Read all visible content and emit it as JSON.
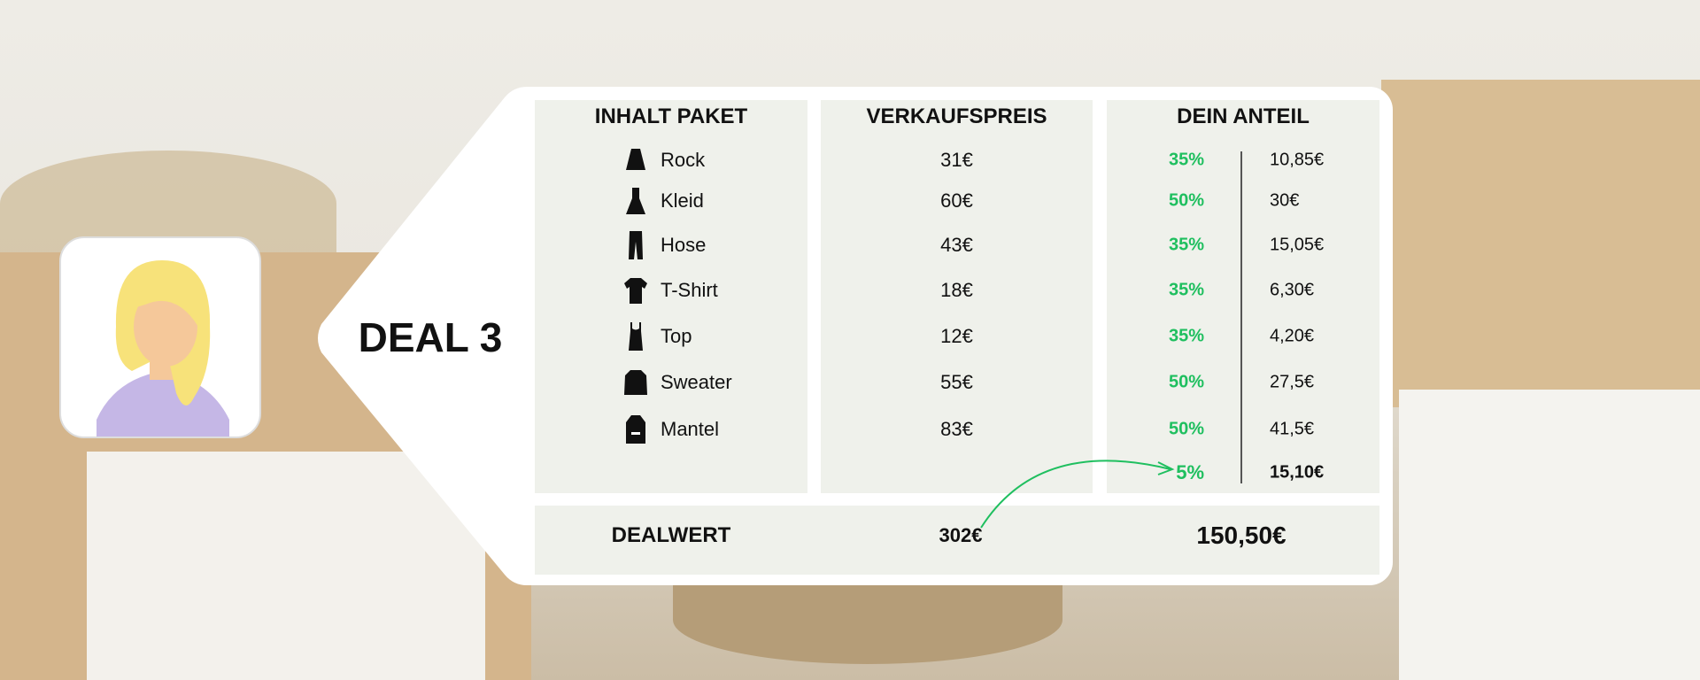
{
  "deal_title": "DEAL 3",
  "headers": {
    "contents": "INHALT PAKET",
    "price": "VERKAUFSPREIS",
    "share": "DEIN ANTEIL"
  },
  "items": [
    {
      "name": "Rock",
      "icon": "skirt-icon",
      "price": "31€",
      "percent": "35%",
      "share": "10,85€"
    },
    {
      "name": "Kleid",
      "icon": "dress-icon",
      "price": "60€",
      "percent": "50%",
      "share": "30€"
    },
    {
      "name": "Hose",
      "icon": "trousers-icon",
      "price": "43€",
      "percent": "35%",
      "share": "15,05€"
    },
    {
      "name": "T-Shirt",
      "icon": "tshirt-icon",
      "price": "18€",
      "percent": "35%",
      "share": "6,30€"
    },
    {
      "name": "Top",
      "icon": "tank-top-icon",
      "price": "12€",
      "percent": "35%",
      "share": "4,20€"
    },
    {
      "name": "Sweater",
      "icon": "sweater-icon",
      "price": "55€",
      "percent": "50%",
      "share": "27,5€"
    },
    {
      "name": "Mantel",
      "icon": "coat-icon",
      "price": "83€",
      "percent": "50%",
      "share": "41,5€"
    }
  ],
  "bonus": {
    "percent": "5%",
    "share": "15,10€"
  },
  "footer": {
    "label": "DEALWERT",
    "total_price": "302€",
    "total_share": "150,50€"
  },
  "colors": {
    "accent": "#1fbf5f",
    "cell_bg": "#eff1eb"
  }
}
